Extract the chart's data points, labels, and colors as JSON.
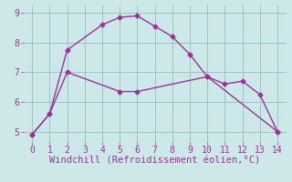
{
  "line1_x": [
    0,
    1,
    2,
    4,
    5,
    6,
    7,
    8,
    9,
    10,
    14
  ],
  "line1_y": [
    4.9,
    5.6,
    7.75,
    8.6,
    8.85,
    8.9,
    8.55,
    8.2,
    7.6,
    6.85,
    5.0
  ],
  "line2_x": [
    0,
    1,
    2,
    5,
    6,
    10,
    11,
    12,
    13,
    14
  ],
  "line2_y": [
    4.9,
    5.6,
    7.0,
    6.35,
    6.35,
    6.85,
    6.6,
    6.7,
    6.25,
    5.0
  ],
  "color": "#993399",
  "bg_color": "#cce8e8",
  "xlabel": "Windchill (Refroidissement éolien,°C)",
  "xlim": [
    -0.5,
    14.5
  ],
  "ylim": [
    4.65,
    9.25
  ],
  "xticks": [
    0,
    1,
    2,
    3,
    4,
    5,
    6,
    7,
    8,
    9,
    10,
    11,
    12,
    13,
    14
  ],
  "yticks": [
    5,
    6,
    7,
    8,
    9
  ],
  "grid_color": "#99bbbb",
  "xlabel_fontsize": 7.5,
  "tick_fontsize": 7.0,
  "marker": "D",
  "marker_size": 2.5,
  "line_width": 1.0
}
